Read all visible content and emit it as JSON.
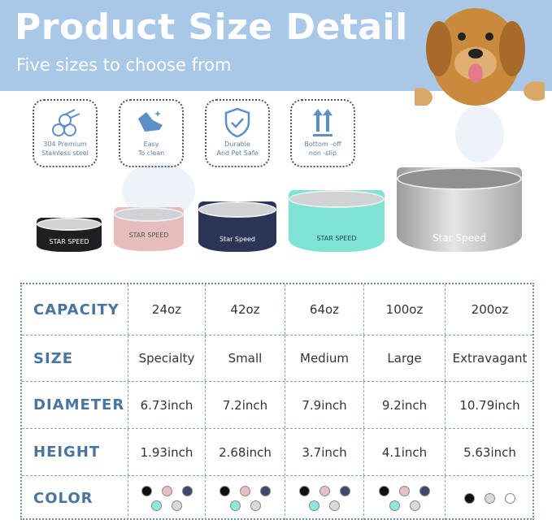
{
  "header": {
    "title": "Product Size Detail",
    "subtitle": "Five sizes to choose from"
  },
  "features": [
    {
      "icon": "steel-pipes-icon",
      "line1": "304 Premium",
      "line2": "Stainless steel"
    },
    {
      "icon": "cleaning-hand-icon",
      "line1": "Easy",
      "line2": "To clean"
    },
    {
      "icon": "shield-check-icon",
      "line1": "Durable",
      "line2": "And Pet Safe"
    },
    {
      "icon": "up-arrows-icon",
      "line1": "Bottom -off",
      "line2": "non -slip"
    }
  ],
  "bowls": [
    {
      "color": "#1e1f22",
      "brand": "STAR SPEED"
    },
    {
      "color": "#e7bdbb",
      "brand": "STAR SPEED"
    },
    {
      "color": "#2c3558",
      "brand": "Star Speed"
    },
    {
      "color": "#7fe3d3",
      "brand": "STAR SPEED"
    },
    {
      "color": "#c4c6c8",
      "brand": "Star Speed"
    }
  ],
  "table": {
    "rows": [
      {
        "label": "CAPACITY",
        "values": [
          "24oz",
          "42oz",
          "64oz",
          "100oz",
          "200oz"
        ]
      },
      {
        "label": "SIZE",
        "values": [
          "Specialty",
          "Small",
          "Medium",
          "Large",
          "Extravagant"
        ]
      },
      {
        "label": "DIAMETER",
        "values": [
          "6.73inch",
          "7.2inch",
          "7.9inch",
          "9.2inch",
          "10.79inch"
        ]
      },
      {
        "label": "HEIGHT",
        "values": [
          "1.93inch",
          "2.68inch",
          "3.7inch",
          "4.1inch",
          "5.63inch"
        ]
      }
    ],
    "color_label": "COLOR",
    "color_options": [
      [
        "#111111",
        "#e6bfc0",
        "#3d4a6e",
        "#8fe8dc",
        "#d9d9d9"
      ],
      [
        "#111111",
        "#e6bfc0",
        "#3d4a6e",
        "#8fe8dc",
        "#d9d9d9"
      ],
      [
        "#111111",
        "#e6bfc0",
        "#3d4a6e",
        "#8fe8dc",
        "#d9d9d9"
      ],
      [
        "#111111",
        "#e6bfc0",
        "#3d4a6e",
        "#8fe8dc",
        "#d9d9d9"
      ],
      [
        "#111111",
        "#d9d9d9",
        "#ffffff"
      ]
    ]
  }
}
